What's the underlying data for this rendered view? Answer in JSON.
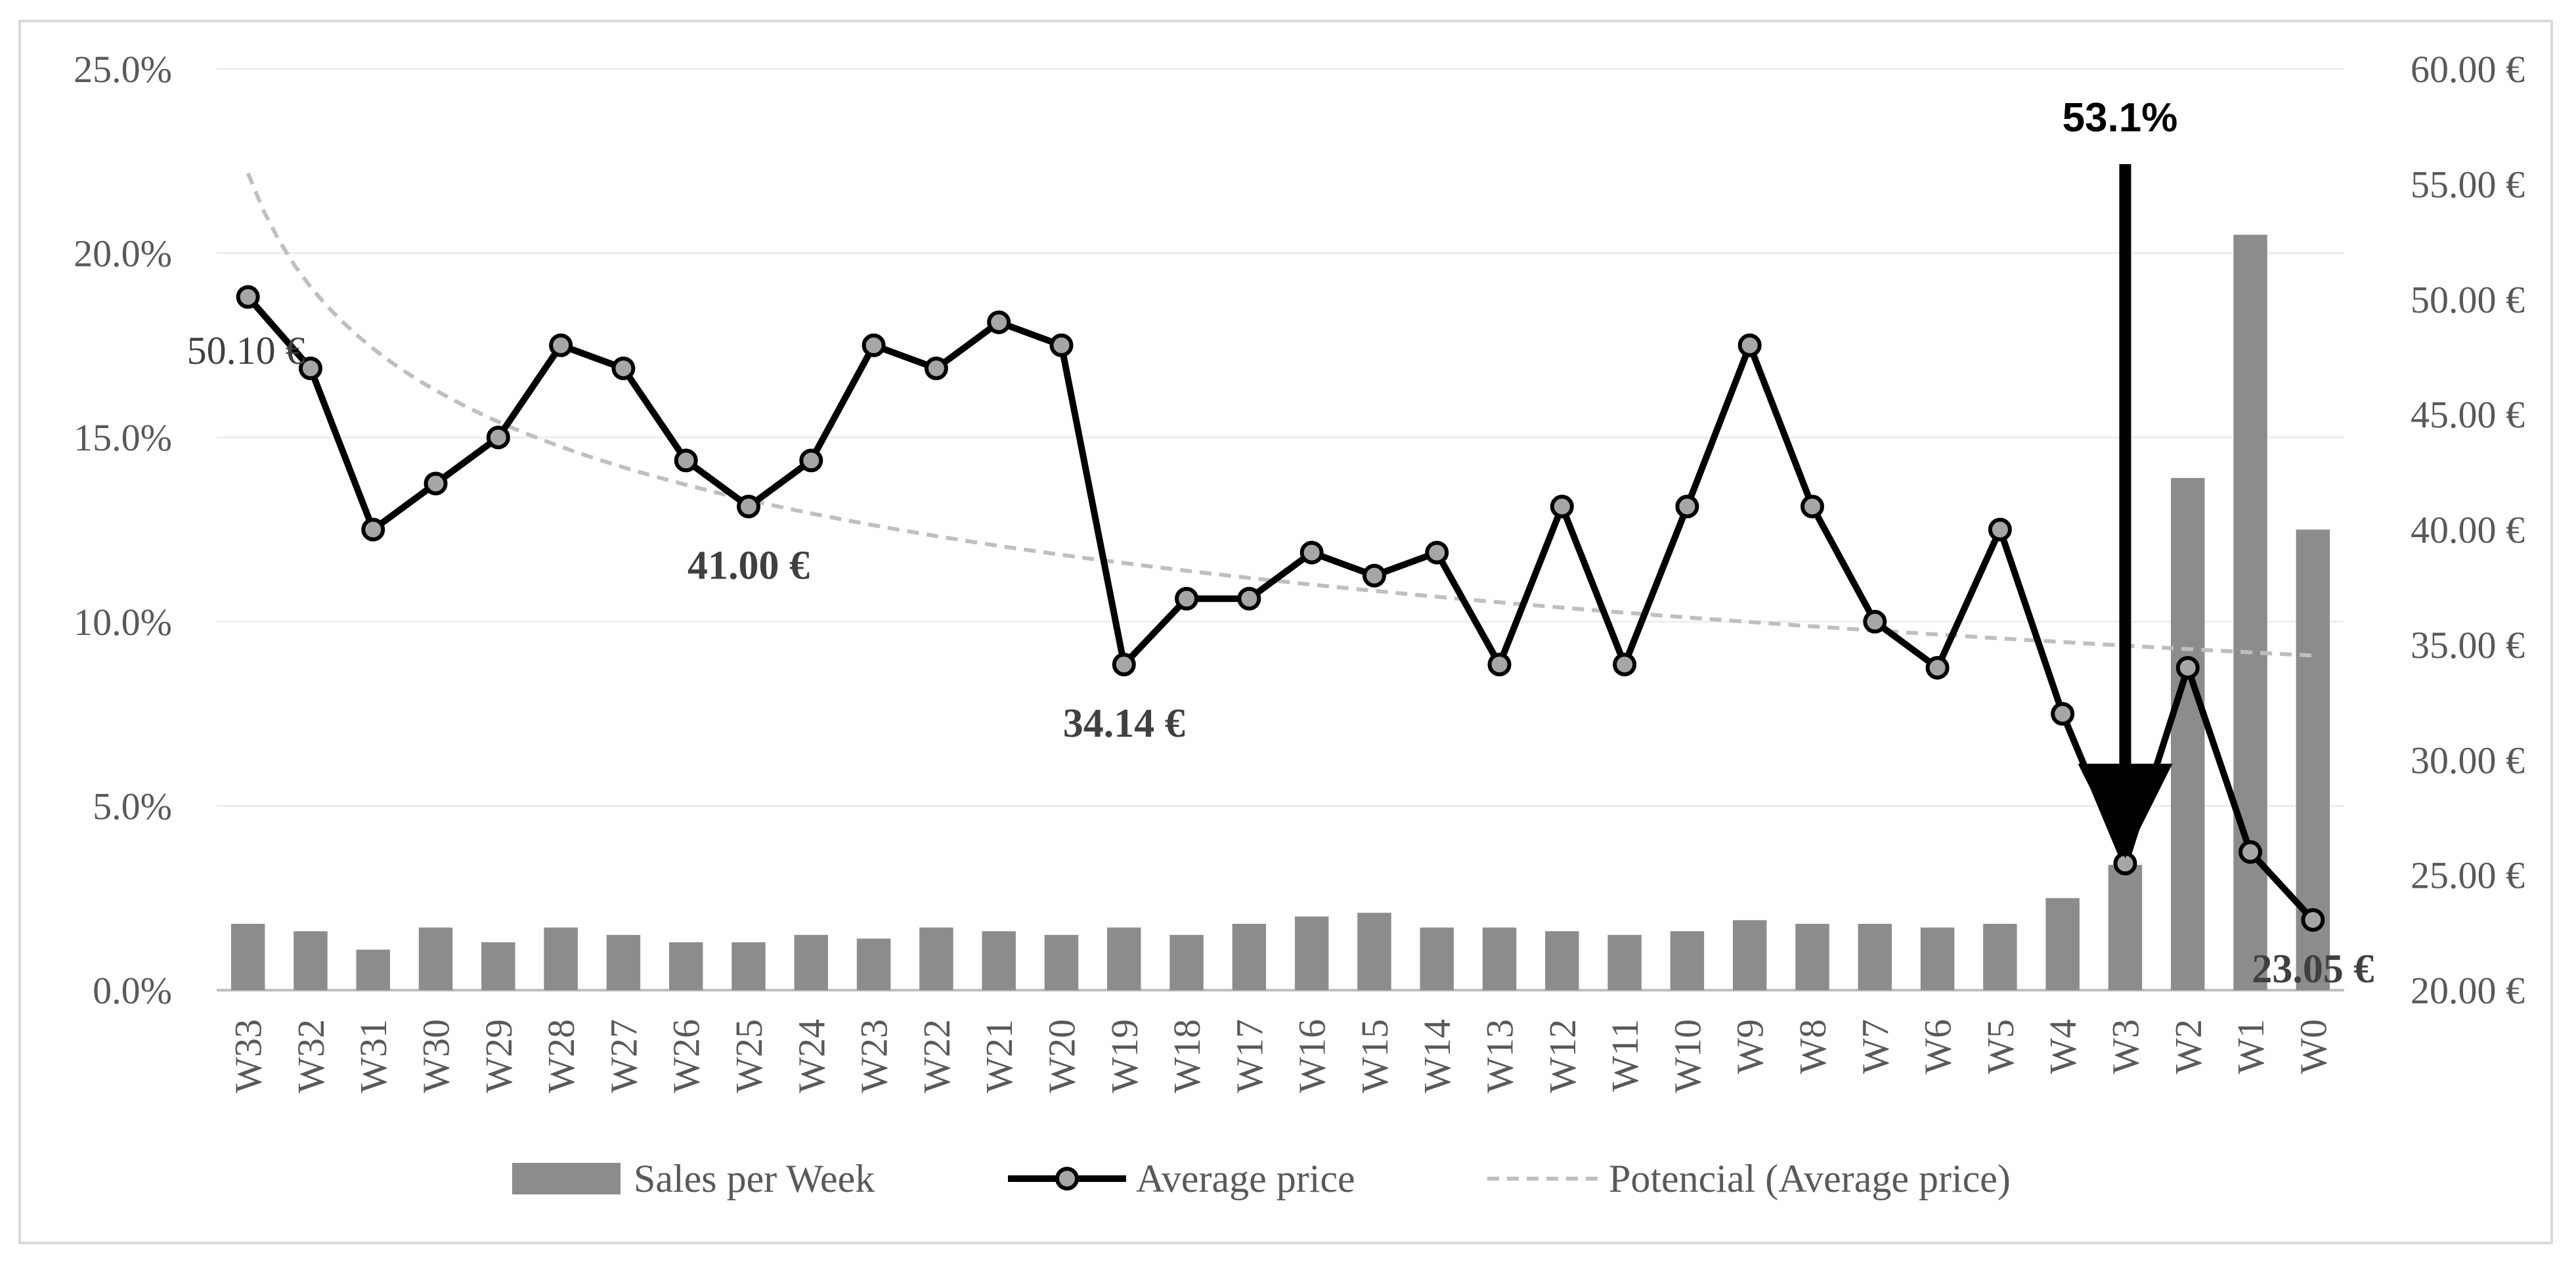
{
  "chart_data": {
    "type": "bar+line",
    "categories": [
      "W33",
      "W32",
      "W31",
      "W30",
      "W29",
      "W28",
      "W27",
      "W26",
      "W25",
      "W24",
      "W23",
      "W22",
      "W21",
      "W20",
      "W19",
      "W18",
      "W17",
      "W16",
      "W15",
      "W14",
      "W13",
      "W12",
      "W11",
      "W10",
      "W9",
      "W8",
      "W7",
      "W6",
      "W5",
      "W4",
      "W3",
      "W2",
      "W1",
      "W0"
    ],
    "series": [
      {
        "name": "Sales per Week",
        "type": "bar",
        "axis": "left",
        "color": "#8c8c8c",
        "values": [
          1.8,
          1.6,
          1.1,
          1.7,
          1.3,
          1.7,
          1.5,
          1.3,
          1.3,
          1.5,
          1.4,
          1.7,
          1.6,
          1.5,
          1.7,
          1.5,
          1.8,
          2.0,
          2.1,
          1.7,
          1.7,
          1.6,
          1.5,
          1.6,
          1.9,
          1.8,
          1.8,
          1.7,
          1.8,
          2.5,
          3.4,
          13.9,
          20.5,
          12.5
        ]
      },
      {
        "name": "Average price",
        "type": "line",
        "axis": "right",
        "color": "#000000",
        "marker_color": "#a6a6a6",
        "values": [
          50.1,
          47.0,
          40.0,
          42.0,
          44.0,
          48.0,
          47.0,
          43.0,
          41.0,
          43.0,
          48.0,
          47.0,
          49.0,
          48.0,
          34.14,
          37.0,
          37.0,
          39.0,
          38.0,
          39.0,
          34.14,
          41.0,
          34.14,
          41.0,
          48.0,
          41.0,
          36.0,
          34.0,
          40.0,
          32.0,
          25.5,
          34.0,
          26.0,
          23.05
        ]
      },
      {
        "name": "Potencial (Average price)",
        "type": "trendline",
        "axis": "right",
        "color": "#bfbfbf",
        "style": "dashed"
      }
    ],
    "left_axis": {
      "ylim": [
        0,
        25
      ],
      "ticks": [
        "0.0%",
        "5.0%",
        "10.0%",
        "15.0%",
        "20.0%",
        "25.0%"
      ]
    },
    "right_axis": {
      "ylim": [
        20,
        60
      ],
      "ticks": [
        "20.00 €",
        "25.00 €",
        "30.00 €",
        "35.00 €",
        "40.00 €",
        "45.00 €",
        "50.00 €",
        "55.00 €",
        "60.00 €"
      ]
    },
    "annotations": [
      {
        "text": "50.10 €",
        "category": "W33",
        "style": "normal"
      },
      {
        "text": "41.00 €",
        "category": "W25",
        "style": "bold"
      },
      {
        "text": "34.14 €",
        "category": "W19",
        "style": "bold"
      },
      {
        "text": "23.05 €",
        "category": "W0",
        "style": "bold"
      }
    ],
    "peak_callout": {
      "text": "53.1%",
      "category": "W3"
    },
    "legend": {
      "position": "bottom",
      "items": [
        "Sales per Week",
        "Average price",
        "Potencial (Average price)"
      ]
    }
  }
}
